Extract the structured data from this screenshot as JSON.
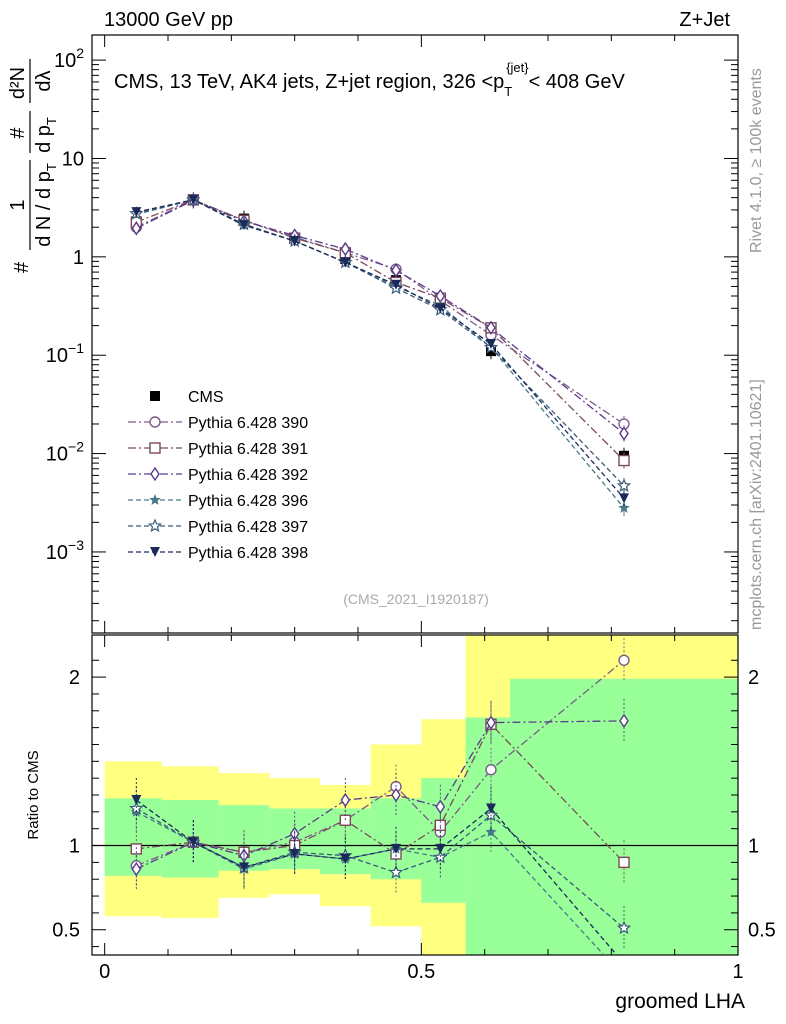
{
  "header": {
    "left": "13000 GeV pp",
    "right": "Z+Jet"
  },
  "side_labels": {
    "rivet": "Rivet 4.1.0, ≥ 100k events",
    "source": "mcplots.cern.ch [arXiv:2401.10621]"
  },
  "chart_data": {
    "type": "line",
    "title": "CMS, 13 TeV, AK4 jets, Z+jet region, 326 <p_T^{jet}< 408 GeV",
    "title_parts": {
      "main": "CMS, 13 TeV, AK4 jets, Z+jet region, 326 <p",
      "sub": "T",
      "sup": "{jet}",
      "tail": "< 408 GeV"
    },
    "analysis_id": "(CMS_2021_I1920187)",
    "xlabel": "groomed LHA",
    "ylabel_top": {
      "num": "1",
      "den": "d N / d p",
      "den_sub": "T",
      "mid_num": "#",
      "mid_den": "d p",
      "mid_den_sub": "T",
      "right_num": "d²N",
      "right_den": "dλ",
      "prefix": "#"
    },
    "ylabel_ratio": "Ratio to CMS",
    "xlim": [
      -0.02,
      1.0
    ],
    "ylim_main": [
      0.00015,
      180
    ],
    "ylim_ratio": [
      0.35,
      2.25
    ],
    "x_ticks": [
      "0",
      "0.5",
      "1"
    ],
    "y_ticks_main": [
      {
        "base": "10",
        "exp": "2",
        "v": 100
      },
      {
        "base": "10",
        "exp": "",
        "v": 10
      },
      {
        "base": "1",
        "exp": "",
        "v": 1
      },
      {
        "base": "10",
        "exp": "−1",
        "v": 0.1
      },
      {
        "base": "10",
        "exp": "−2",
        "v": 0.01
      },
      {
        "base": "10",
        "exp": "−3",
        "v": 0.001
      }
    ],
    "y_ticks_ratio": [
      "0.5",
      "1",
      "2"
    ],
    "x": [
      0.05,
      0.14,
      0.22,
      0.3,
      0.38,
      0.46,
      0.53,
      0.61,
      0.82
    ],
    "bin_edges": [
      0.0,
      0.09,
      0.18,
      0.26,
      0.34,
      0.42,
      0.5,
      0.57,
      0.64,
      1.0
    ],
    "band_yellow": [
      [
        0.58,
        1.5
      ],
      [
        0.57,
        1.47
      ],
      [
        0.69,
        1.43
      ],
      [
        0.71,
        1.4
      ],
      [
        0.64,
        1.36
      ],
      [
        0.52,
        1.6
      ],
      [
        0.35,
        1.75
      ],
      [
        0.35,
        2.25
      ],
      [
        0.35,
        2.25
      ]
    ],
    "band_green": [
      [
        0.82,
        1.28
      ],
      [
        0.81,
        1.27
      ],
      [
        0.85,
        1.24
      ],
      [
        0.86,
        1.22
      ],
      [
        0.83,
        1.22
      ],
      [
        0.8,
        1.28
      ],
      [
        0.66,
        1.4
      ],
      [
        0.35,
        1.76
      ],
      [
        0.35,
        1.99
      ]
    ],
    "series": [
      {
        "name": "CMS",
        "marker": "square-filled",
        "color": "#000000",
        "dash": "none",
        "values": [
          2.3,
          3.75,
          2.45,
          1.55,
          0.95,
          0.58,
          0.34,
          0.11,
          0.0095
        ],
        "ratio": [
          1,
          1,
          1,
          1,
          1,
          1,
          1,
          1,
          1
        ]
      },
      {
        "name": "Pythia 6.428 390",
        "marker": "circle-open",
        "color": "#7a5a8a",
        "dash": "8,3,2,3",
        "values": [
          2.0,
          3.8,
          2.35,
          1.58,
          1.1,
          0.75,
          0.36,
          0.16,
          0.02
        ],
        "ratio": [
          0.88,
          1.02,
          0.96,
          1.02,
          1.15,
          1.35,
          1.08,
          1.45,
          2.1
        ]
      },
      {
        "name": "Pythia 6.428 391",
        "marker": "square-open",
        "color": "#7a4a5a",
        "dash": "8,3,2,3",
        "values": [
          2.25,
          3.8,
          2.35,
          1.55,
          1.1,
          0.55,
          0.38,
          0.19,
          0.0085
        ],
        "ratio": [
          0.98,
          1.02,
          0.96,
          1.0,
          1.15,
          0.95,
          1.12,
          1.72,
          0.9
        ]
      },
      {
        "name": "Pythia 6.428 392",
        "marker": "diamond-open",
        "color": "#5a3a8a",
        "dash": "8,3,2,3",
        "values": [
          1.95,
          3.75,
          2.3,
          1.65,
          1.2,
          0.73,
          0.4,
          0.19,
          0.016
        ],
        "ratio": [
          0.86,
          1.02,
          0.94,
          1.07,
          1.27,
          1.3,
          1.23,
          1.73,
          1.74
        ]
      },
      {
        "name": "Pythia 6.428 396",
        "marker": "star-filled",
        "color": "#4a7a8a",
        "dash": "5,3",
        "values": [
          2.7,
          3.8,
          2.1,
          1.45,
          0.88,
          0.5,
          0.32,
          0.12,
          0.0028
        ],
        "ratio": [
          1.2,
          1.02,
          0.86,
          0.95,
          0.92,
          0.98,
          0.93,
          1.08,
          0.22
        ]
      },
      {
        "name": "Pythia 6.428 397",
        "marker": "star-open",
        "color": "#3a5a7a",
        "dash": "5,3",
        "values": [
          2.75,
          3.8,
          2.15,
          1.45,
          0.88,
          0.48,
          0.29,
          0.12,
          0.0047
        ],
        "ratio": [
          1.22,
          1.02,
          0.87,
          0.96,
          0.94,
          0.84,
          0.93,
          1.18,
          0.51
        ]
      },
      {
        "name": "Pythia 6.428 398",
        "marker": "triangle-down-filled",
        "color": "#1a2a5a",
        "dash": "5,3",
        "values": [
          2.85,
          3.8,
          2.1,
          1.45,
          0.88,
          0.52,
          0.3,
          0.13,
          0.0035
        ],
        "ratio": [
          1.27,
          1.02,
          0.87,
          0.95,
          0.92,
          0.98,
          0.98,
          1.22,
          0.3
        ]
      }
    ]
  }
}
